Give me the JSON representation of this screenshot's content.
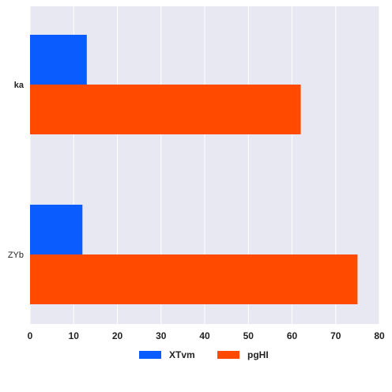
{
  "chart_data": {
    "type": "bar",
    "orientation": "horizontal",
    "categories": [
      "ka",
      "ZYb"
    ],
    "category_label_bold": [
      true,
      false
    ],
    "series": [
      {
        "name": "XTvm",
        "color": "#0b5cff",
        "values": [
          13,
          12
        ]
      },
      {
        "name": "pgHI",
        "color": "#ff4a00",
        "values": [
          62,
          75
        ]
      }
    ],
    "xlim": [
      0,
      80
    ],
    "xticks": [
      0,
      10,
      20,
      30,
      40,
      50,
      60,
      70,
      80
    ],
    "grid": true,
    "legend_position": "bottom-center",
    "plot_background": "#e8e8f2",
    "grid_color": "#ffffff"
  }
}
